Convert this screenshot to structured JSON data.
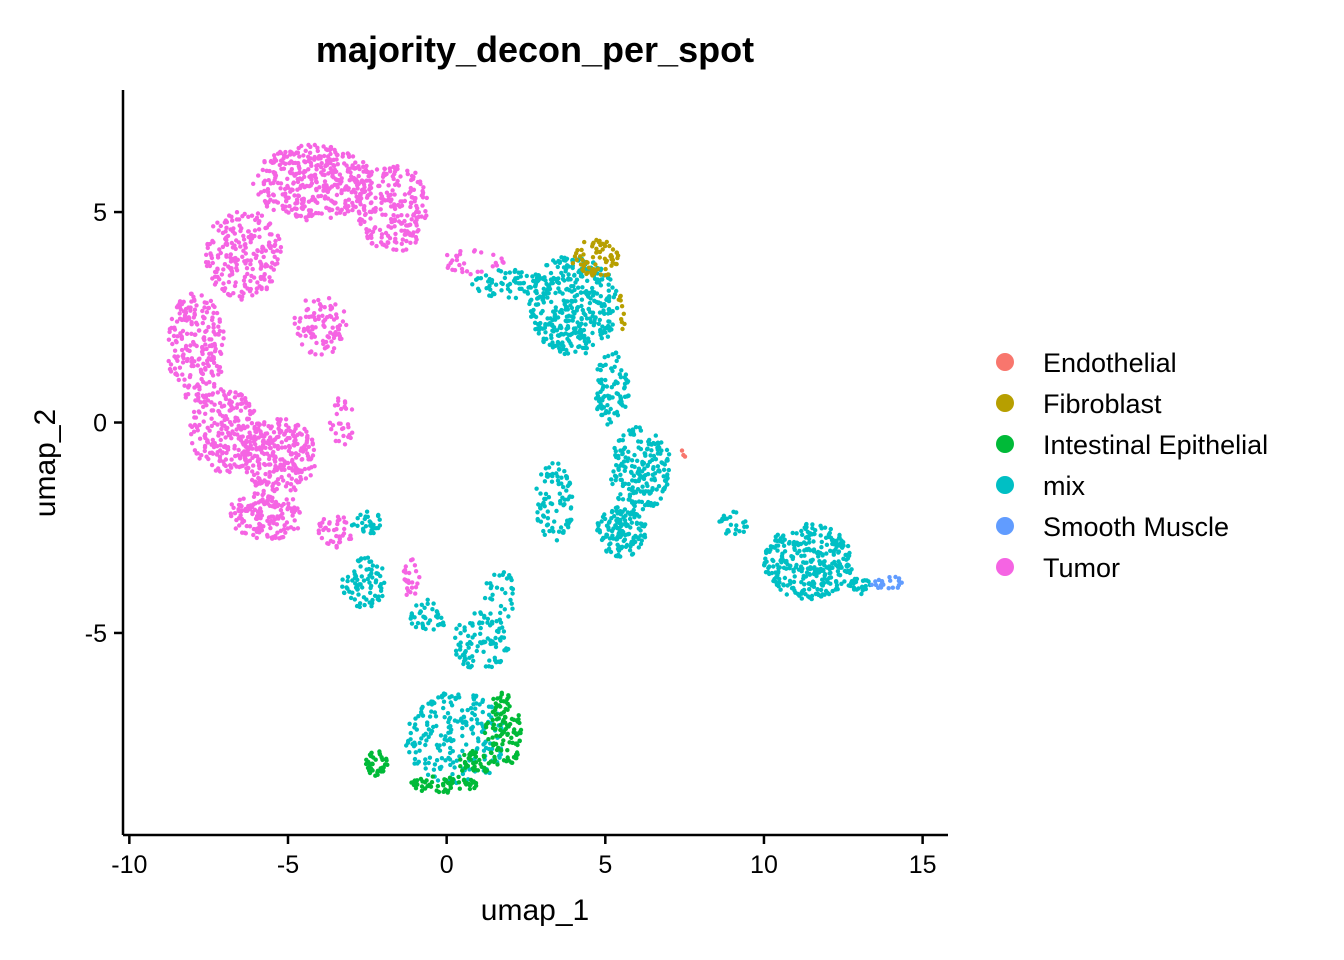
{
  "chart_data": {
    "type": "scatter",
    "title": "majority_decon_per_spot",
    "xlabel": "umap_1",
    "ylabel": "umap_2",
    "xlim": [
      -10.2,
      15.8
    ],
    "ylim": [
      -9.8,
      7.9
    ],
    "xticks": [
      -10,
      -5,
      0,
      5,
      10,
      15
    ],
    "xtick_labels": [
      "-10",
      "-5",
      "0",
      "5",
      "10",
      "15"
    ],
    "yticks": [
      -5,
      0,
      5
    ],
    "ytick_labels": [
      "-5",
      "0",
      "5"
    ],
    "grid": false,
    "legend_position": "right",
    "series": [
      {
        "name": "Endothelial",
        "color": "#F8766D",
        "regions": [
          {
            "cx": 7.4,
            "cy": -0.8,
            "rx": 0.15,
            "ry": 0.2,
            "n": 3
          }
        ]
      },
      {
        "name": "Fibroblast",
        "color": "#B79F00",
        "regions": [
          {
            "cx": 4.7,
            "cy": 3.9,
            "rx": 0.75,
            "ry": 0.45,
            "n": 70
          },
          {
            "cx": 5.5,
            "cy": 2.6,
            "rx": 0.15,
            "ry": 0.45,
            "n": 10
          }
        ]
      },
      {
        "name": "Intestinal Epithelial",
        "color": "#00BA38",
        "regions": [
          {
            "cx": 1.8,
            "cy": -7.3,
            "rx": 0.6,
            "ry": 0.9,
            "n": 110
          },
          {
            "cx": -0.1,
            "cy": -8.6,
            "rx": 1.1,
            "ry": 0.2,
            "n": 60
          },
          {
            "cx": -2.2,
            "cy": -8.1,
            "rx": 0.35,
            "ry": 0.3,
            "n": 40
          },
          {
            "cx": 0.9,
            "cy": -8.1,
            "rx": 0.5,
            "ry": 0.3,
            "n": 40
          }
        ]
      },
      {
        "name": "mix",
        "color": "#00BFC4",
        "regions": [
          {
            "cx": 4.0,
            "cy": 2.8,
            "rx": 1.4,
            "ry": 1.2,
            "n": 380
          },
          {
            "cx": 2.0,
            "cy": 3.3,
            "rx": 1.3,
            "ry": 0.35,
            "n": 70
          },
          {
            "cx": 5.2,
            "cy": 0.8,
            "rx": 0.55,
            "ry": 0.9,
            "n": 90
          },
          {
            "cx": 6.1,
            "cy": -1.1,
            "rx": 1.0,
            "ry": 1.0,
            "n": 200
          },
          {
            "cx": 5.5,
            "cy": -2.6,
            "rx": 0.8,
            "ry": 0.6,
            "n": 150
          },
          {
            "cx": 3.4,
            "cy": -1.9,
            "rx": 0.6,
            "ry": 1.0,
            "n": 90
          },
          {
            "cx": 11.4,
            "cy": -3.3,
            "rx": 1.4,
            "ry": 0.9,
            "n": 320
          },
          {
            "cx": 9.0,
            "cy": -2.4,
            "rx": 0.5,
            "ry": 0.3,
            "n": 25
          },
          {
            "cx": 13.0,
            "cy": -3.9,
            "rx": 0.4,
            "ry": 0.2,
            "n": 25
          },
          {
            "cx": 1.1,
            "cy": -5.2,
            "rx": 0.9,
            "ry": 0.7,
            "n": 100
          },
          {
            "cx": 0.3,
            "cy": -7.5,
            "rx": 1.6,
            "ry": 1.1,
            "n": 220
          },
          {
            "cx": -2.6,
            "cy": -3.8,
            "rx": 0.7,
            "ry": 0.6,
            "n": 80
          },
          {
            "cx": -2.5,
            "cy": -2.4,
            "rx": 0.5,
            "ry": 0.3,
            "n": 30
          },
          {
            "cx": -0.6,
            "cy": -4.6,
            "rx": 0.6,
            "ry": 0.4,
            "n": 40
          },
          {
            "cx": 1.7,
            "cy": -4.1,
            "rx": 0.5,
            "ry": 0.6,
            "n": 30
          }
        ]
      },
      {
        "name": "Smooth Muscle",
        "color": "#619CFF",
        "regions": [
          {
            "cx": 13.9,
            "cy": -3.8,
            "rx": 0.6,
            "ry": 0.15,
            "n": 22
          }
        ]
      },
      {
        "name": "Tumor",
        "color": "#F564E3",
        "regions": [
          {
            "cx": -4.2,
            "cy": 5.7,
            "rx": 1.9,
            "ry": 0.9,
            "n": 380
          },
          {
            "cx": -1.7,
            "cy": 5.1,
            "rx": 1.1,
            "ry": 1.1,
            "n": 220
          },
          {
            "cx": -6.4,
            "cy": 4.0,
            "rx": 1.2,
            "ry": 1.1,
            "n": 220
          },
          {
            "cx": -7.9,
            "cy": 1.8,
            "rx": 0.9,
            "ry": 1.3,
            "n": 220
          },
          {
            "cx": -7.0,
            "cy": -0.2,
            "rx": 1.1,
            "ry": 1.0,
            "n": 220
          },
          {
            "cx": -5.3,
            "cy": -0.8,
            "rx": 1.2,
            "ry": 0.9,
            "n": 260
          },
          {
            "cx": -5.7,
            "cy": -2.2,
            "rx": 1.2,
            "ry": 0.6,
            "n": 150
          },
          {
            "cx": -4.0,
            "cy": 2.3,
            "rx": 0.9,
            "ry": 0.7,
            "n": 90
          },
          {
            "cx": -3.3,
            "cy": 0.0,
            "rx": 0.4,
            "ry": 0.6,
            "n": 30
          },
          {
            "cx": -3.5,
            "cy": -2.6,
            "rx": 0.6,
            "ry": 0.4,
            "n": 40
          },
          {
            "cx": -1.1,
            "cy": -3.7,
            "rx": 0.3,
            "ry": 0.5,
            "n": 25
          },
          {
            "cx": 0.8,
            "cy": 3.8,
            "rx": 1.0,
            "ry": 0.3,
            "n": 30
          }
        ]
      }
    ]
  }
}
